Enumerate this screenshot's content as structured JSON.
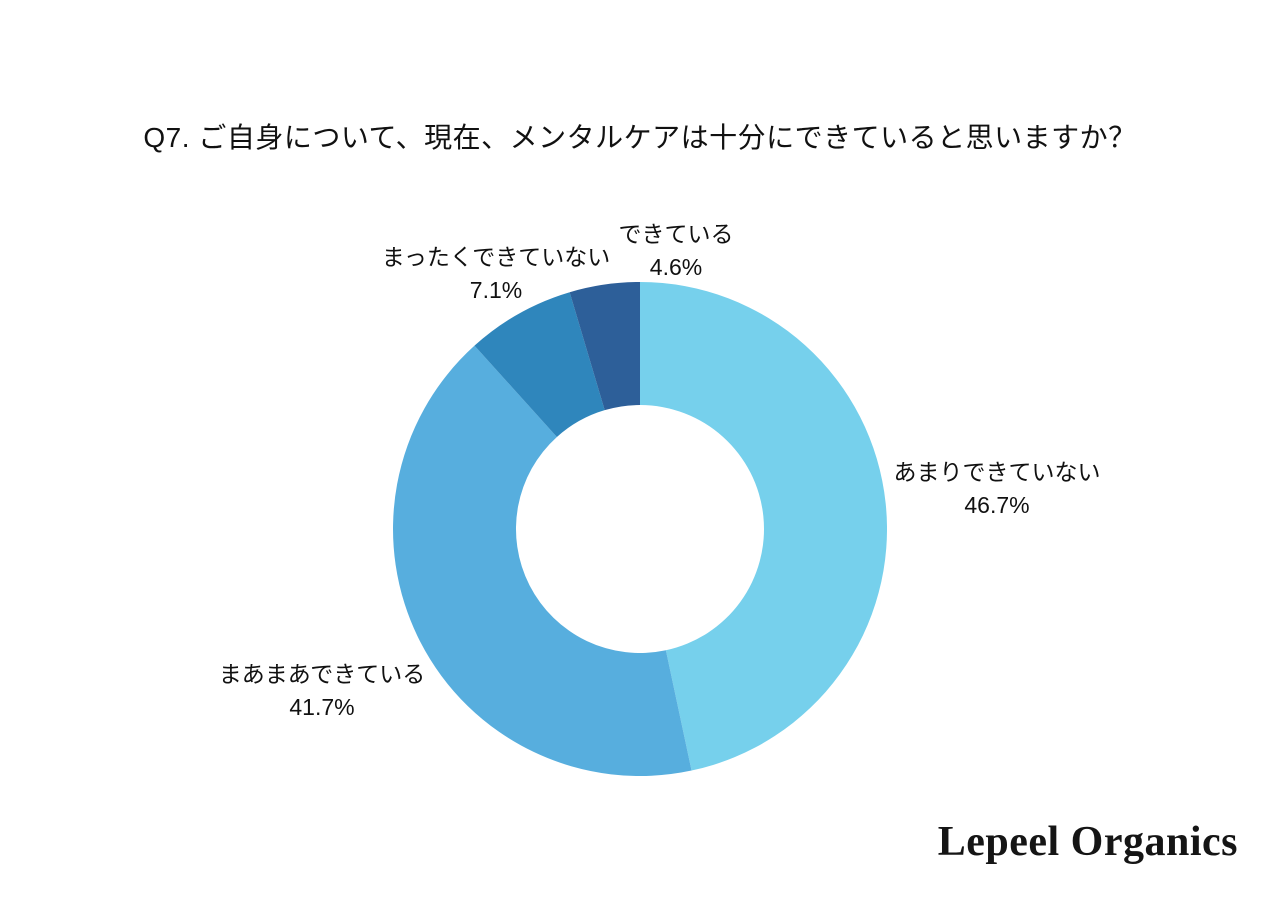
{
  "page": {
    "background_color": "#ffffff",
    "text_color": "#111111"
  },
  "title": "Q7. ご自身について、現在、メンタルケアは十分にできていると思いますか？",
  "logo": "Lepeel Organics",
  "chart_data": {
    "type": "pie",
    "subtype": "donut",
    "title": "Q7. ご自身について、現在、メンタルケアは十分にできていると思いますか？",
    "direction": "clockwise",
    "start_angle": "12-o-clock",
    "inner_radius_ratio": 0.5,
    "grid": false,
    "legend_position": "none",
    "labels_position": "outside",
    "segments": [
      {
        "label": "あまりできていない",
        "value": 46.7,
        "pct_label": "46.7%",
        "color": "#76d0ec"
      },
      {
        "label": "まあまあできている",
        "value": 41.7,
        "pct_label": "41.7%",
        "color": "#57aede"
      },
      {
        "label": "まったくできていない",
        "value": 7.1,
        "pct_label": "7.1%",
        "color": "#2f86bc"
      },
      {
        "label": "できている",
        "value": 4.6,
        "pct_label": "4.6%",
        "color": "#2d5f99"
      }
    ]
  }
}
